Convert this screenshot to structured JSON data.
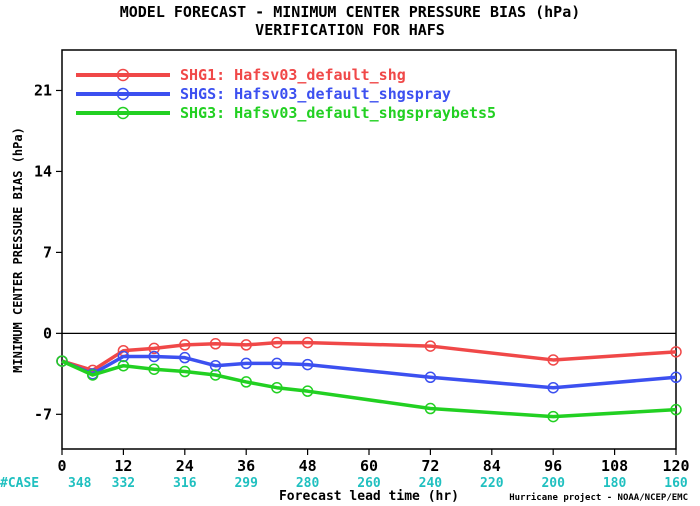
{
  "chart_data": {
    "type": "line",
    "title": "MODEL FORECAST - MINIMUM CENTER PRESSURE BIAS (hPa)",
    "subtitle": "VERIFICATION FOR HAFS",
    "xlabel": "Forecast lead time (hr)",
    "ylabel": "MINIMUM CENTER PRESSURE BIAS (hPa)",
    "xlim": [
      0,
      120
    ],
    "ylim": [
      -10,
      24.5
    ],
    "x_ticks": [
      "0",
      "12",
      "24",
      "36",
      "48",
      "60",
      "72",
      "84",
      "96",
      "108",
      "120"
    ],
    "y_ticks": [
      "-7",
      "0",
      "7",
      "14",
      "21"
    ],
    "zero_line": true,
    "grid": false,
    "legend_position": "top-left",
    "case_label": "#CASE",
    "case_hours": [
      0,
      12,
      24,
      36,
      48,
      60,
      72,
      84,
      96,
      108,
      120
    ],
    "case_counts": [
      "348",
      "332",
      "316",
      "299",
      "280",
      "260",
      "240",
      "220",
      "200",
      "180",
      "160"
    ],
    "credit": "Hurricane project - NOAA/NCEP/EMC",
    "x": [
      0,
      6,
      12,
      18,
      24,
      30,
      36,
      42,
      48,
      72,
      96,
      120
    ],
    "series": [
      {
        "name": "SHG1: Hafsv03_default_shg",
        "color": "#f04848",
        "values": [
          -2.4,
          -3.2,
          -1.5,
          -1.3,
          -1.0,
          -0.9,
          -1.0,
          -0.8,
          -0.8,
          -1.1,
          -2.3,
          -1.6
        ]
      },
      {
        "name": "SHGS: Hafsv03_default_shgspray",
        "color": "#3c50f0",
        "values": [
          -2.4,
          -3.5,
          -2.0,
          -2.0,
          -2.1,
          -2.8,
          -2.6,
          -2.6,
          -2.7,
          -3.8,
          -4.7,
          -3.8
        ]
      },
      {
        "name": "SHG3: Hafsv03_default_shgspraybets5",
        "color": "#22d022",
        "values": [
          -2.4,
          -3.6,
          -2.8,
          -3.1,
          -3.3,
          -3.6,
          -4.2,
          -4.7,
          -5.0,
          -6.5,
          -7.2,
          -6.6
        ]
      }
    ]
  }
}
